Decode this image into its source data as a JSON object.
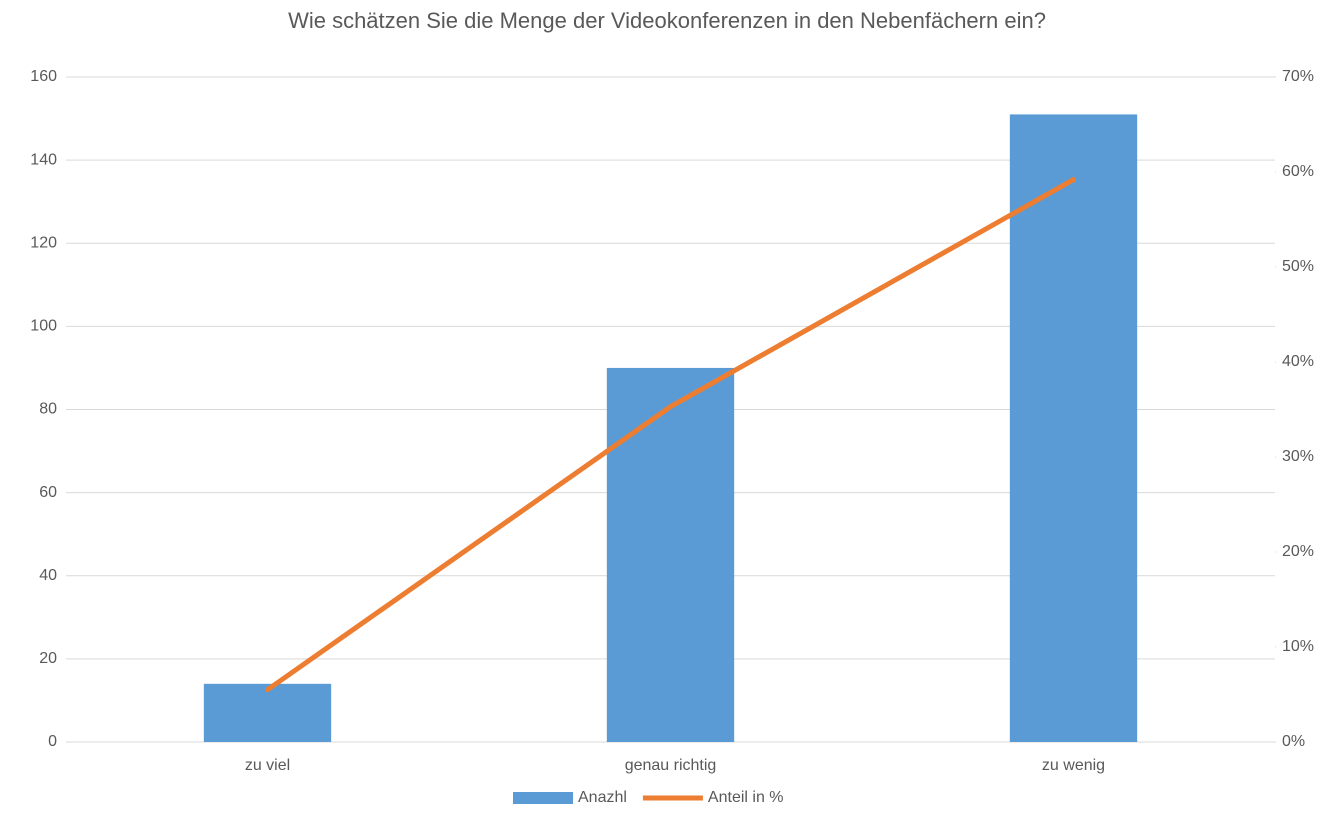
{
  "chart_data": {
    "type": "bar",
    "title": "Wie schätzen Sie die Menge der Videokonferenzen in den Nebenfächern ein?",
    "categories": [
      "zu viel",
      "genau richtig",
      "zu wenig"
    ],
    "series": [
      {
        "name": "Anazhl",
        "type": "bar",
        "color": "#5b9bd5",
        "values": [
          14,
          90,
          151
        ]
      },
      {
        "name": "Anteil in %",
        "type": "line",
        "axis": "y2",
        "color": "#ed7d31",
        "values": [
          5.5,
          35.3,
          59.2
        ]
      }
    ],
    "ylim": [
      0,
      160
    ],
    "yticks": [
      0,
      20,
      40,
      60,
      80,
      100,
      120,
      140,
      160
    ],
    "y2lim": [
      0,
      70
    ],
    "y2ticks": [
      {
        "value": 0,
        "label": "0%"
      },
      {
        "value": 10,
        "label": "10%"
      },
      {
        "value": 20,
        "label": "20%"
      },
      {
        "value": 30,
        "label": "30%"
      },
      {
        "value": 40,
        "label": "40%"
      },
      {
        "value": 50,
        "label": "50%"
      },
      {
        "value": 60,
        "label": "60%"
      },
      {
        "value": 70,
        "label": "70%"
      }
    ],
    "grid": true,
    "legend": "bottom"
  }
}
